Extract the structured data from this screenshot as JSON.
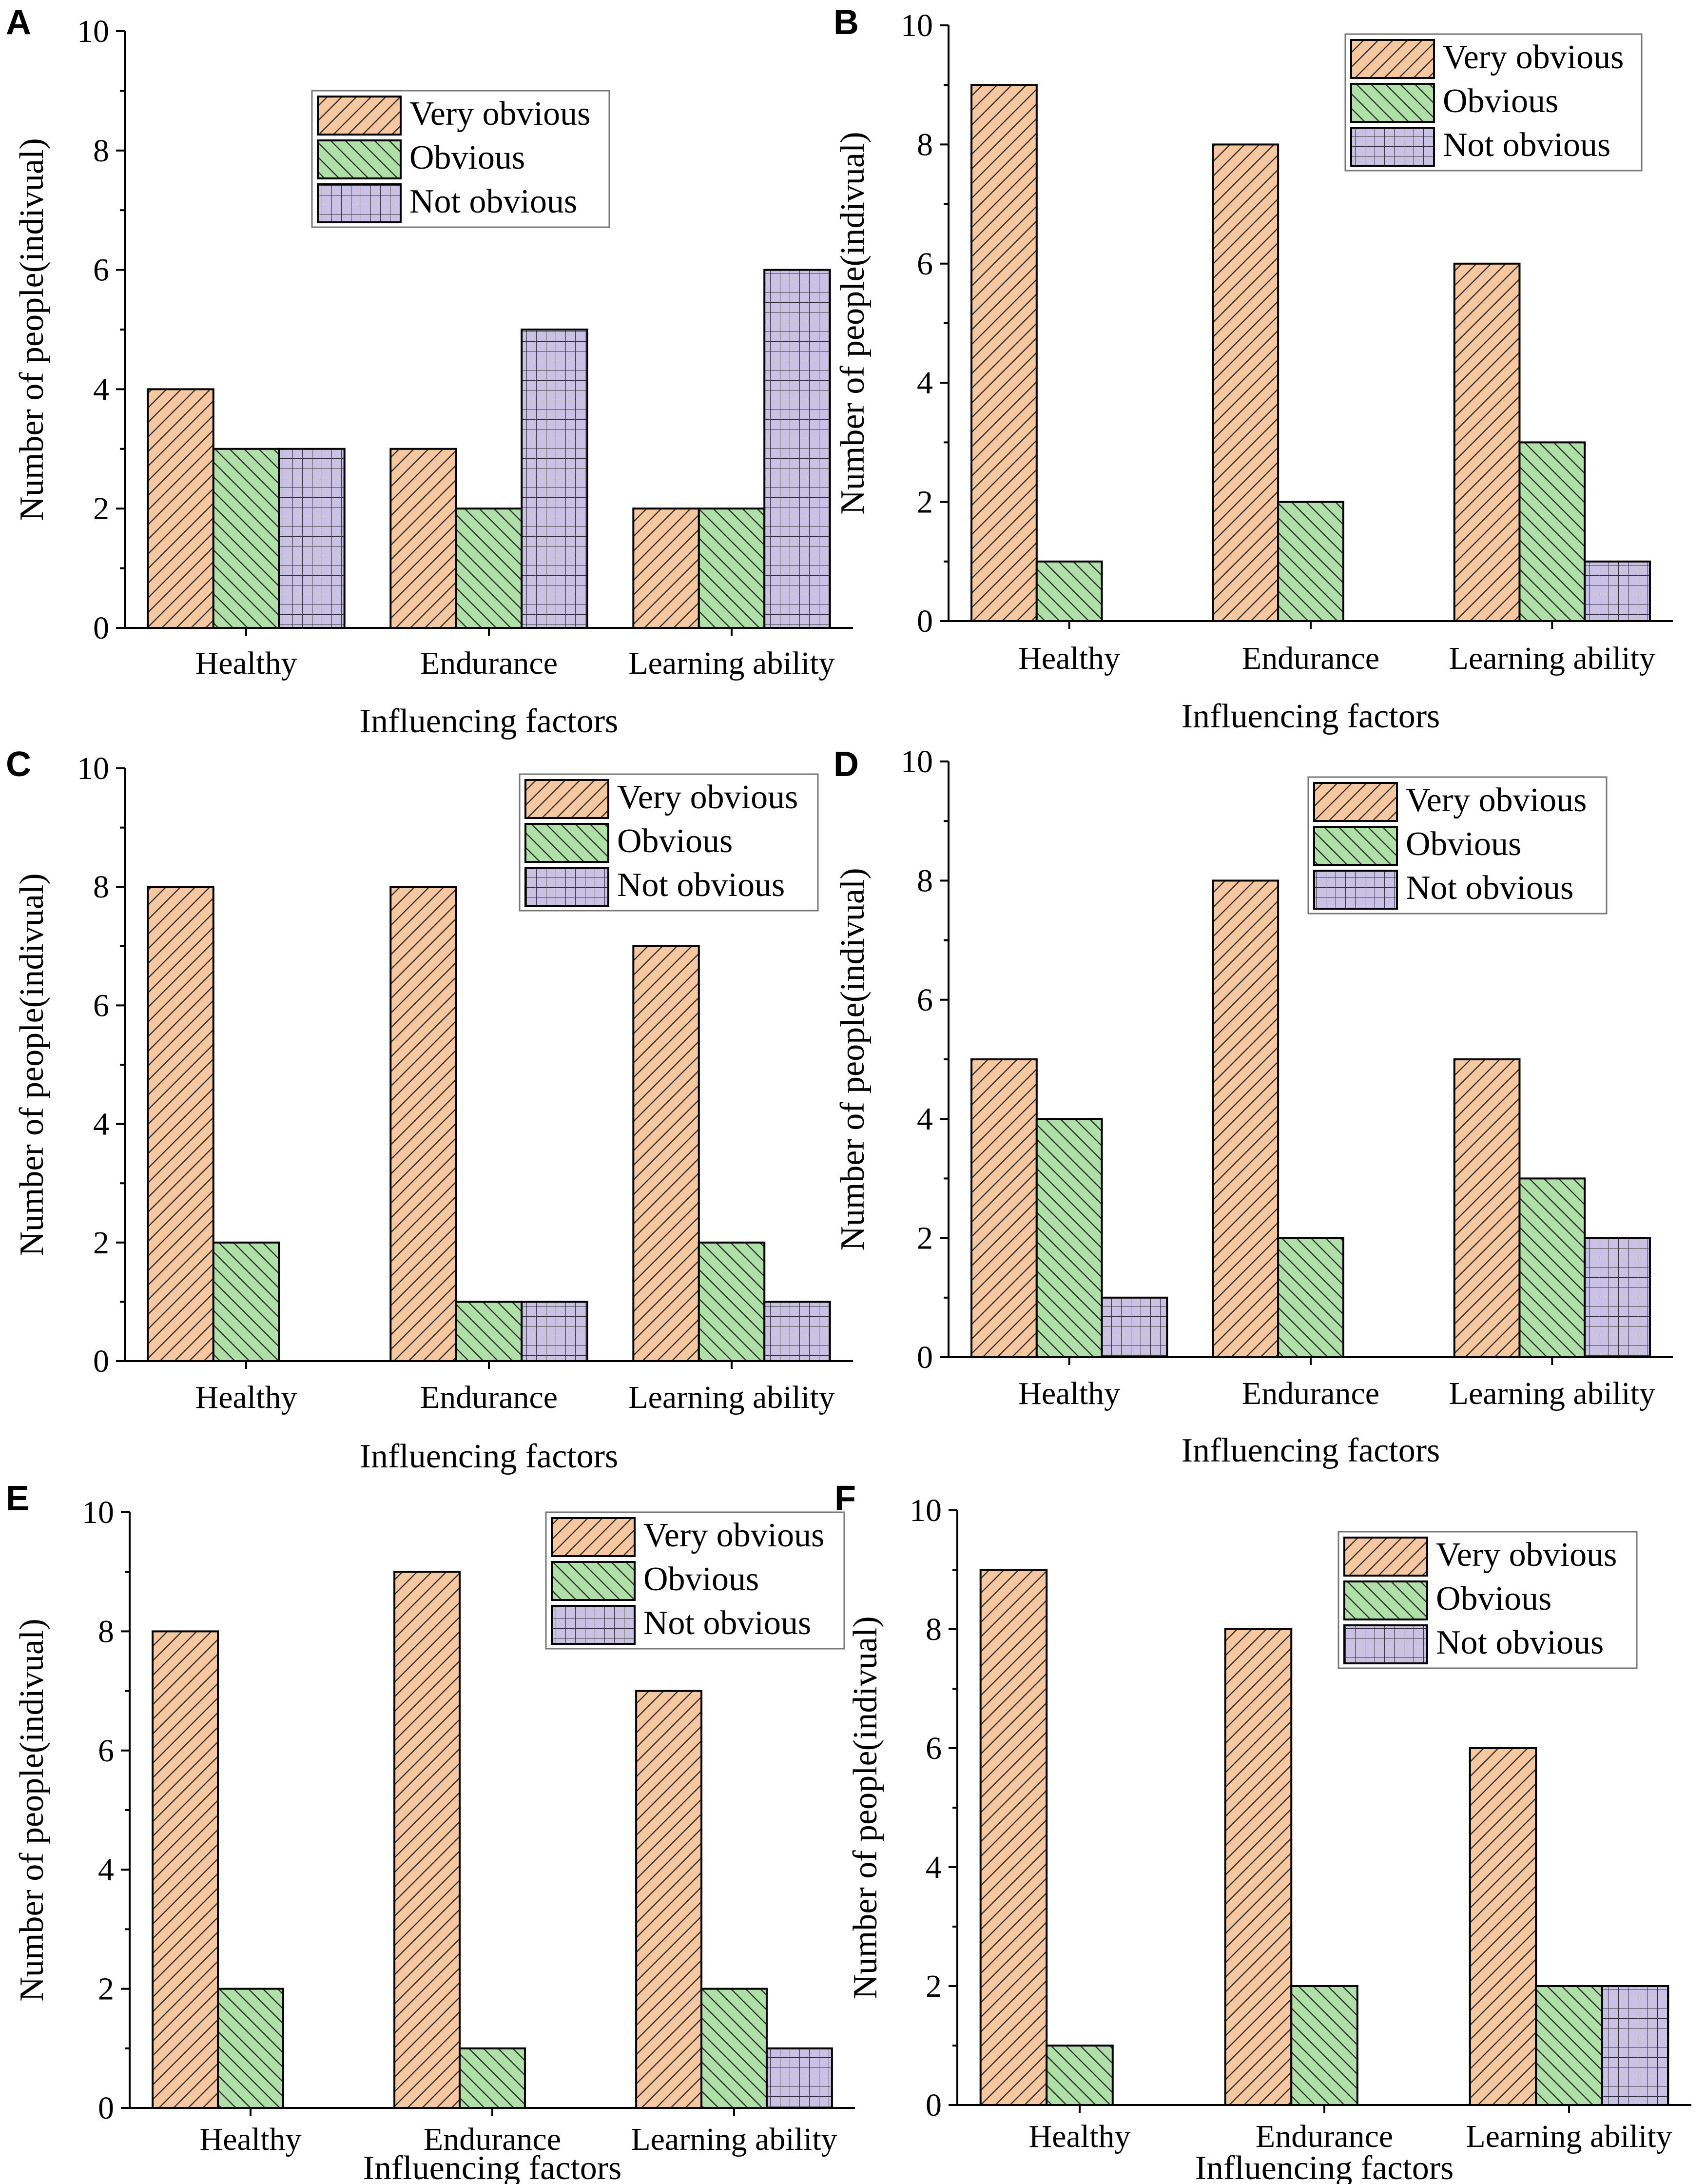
{
  "figure": {
    "colors": {
      "very_obvious": "#F7C7A0",
      "obvious": "#AEE0A8",
      "not_obvious": "#C9C2E4",
      "hatch": "#333333"
    }
  },
  "chart_data": [
    {
      "panel": "A",
      "type": "bar",
      "categories": [
        "Healthy",
        "Endurance",
        "Learning ability"
      ],
      "series": [
        {
          "name": "Very obvious",
          "values": [
            4,
            3,
            2
          ]
        },
        {
          "name": "Obvious",
          "values": [
            3,
            2,
            2
          ]
        },
        {
          "name": "Not obvious",
          "values": [
            3,
            5,
            6
          ]
        }
      ],
      "xlabel": "Influencing factors",
      "ylabel": "Number of people(indivual)",
      "ylim": [
        0,
        10
      ],
      "yticks": [
        "0",
        "2",
        "4",
        "6",
        "8",
        "10"
      ],
      "legend": "top-center"
    },
    {
      "panel": "B",
      "type": "bar",
      "categories": [
        "Healthy",
        "Endurance",
        "Learning ability"
      ],
      "series": [
        {
          "name": "Very obvious",
          "values": [
            9,
            8,
            6
          ]
        },
        {
          "name": "Obvious",
          "values": [
            1,
            2,
            3
          ]
        },
        {
          "name": "Not obvious",
          "values": [
            0,
            0,
            1
          ]
        }
      ],
      "xlabel": "Influencing factors",
      "ylabel": "Number of people(indivual)",
      "ylim": [
        0,
        10
      ],
      "yticks": [
        "0",
        "2",
        "4",
        "6",
        "8",
        "10"
      ],
      "legend": "top-right"
    },
    {
      "panel": "C",
      "type": "bar",
      "categories": [
        "Healthy",
        "Endurance",
        "Learning ability"
      ],
      "series": [
        {
          "name": "Very obvious",
          "values": [
            8,
            8,
            7
          ]
        },
        {
          "name": "Obvious",
          "values": [
            2,
            1,
            2
          ]
        },
        {
          "name": "Not obvious",
          "values": [
            0,
            1,
            1
          ]
        }
      ],
      "xlabel": "Influencing factors",
      "ylabel": "Number of people(indivual)",
      "ylim": [
        0,
        10
      ],
      "yticks": [
        "0",
        "2",
        "4",
        "6",
        "8",
        "10"
      ],
      "legend": "top-right"
    },
    {
      "panel": "D",
      "type": "bar",
      "categories": [
        "Healthy",
        "Endurance",
        "Learning ability"
      ],
      "series": [
        {
          "name": "Very obvious",
          "values": [
            5,
            8,
            5
          ]
        },
        {
          "name": "Obvious",
          "values": [
            4,
            2,
            3
          ]
        },
        {
          "name": "Not obvious",
          "values": [
            1,
            0,
            2
          ]
        }
      ],
      "xlabel": "Influencing factors",
      "ylabel": "Number of people(indivual)",
      "ylim": [
        0,
        10
      ],
      "yticks": [
        "0",
        "2",
        "4",
        "6",
        "8",
        "10"
      ],
      "legend": "top-right"
    },
    {
      "panel": "E",
      "type": "bar",
      "categories": [
        "Healthy",
        "Endurance",
        "Learning ability"
      ],
      "series": [
        {
          "name": "Very obvious",
          "values": [
            8,
            9,
            7
          ]
        },
        {
          "name": "Obvious",
          "values": [
            2,
            1,
            2
          ]
        },
        {
          "name": "Not obvious",
          "values": [
            0,
            0,
            1
          ]
        }
      ],
      "xlabel": "Influencing factors",
      "ylabel": "Number of people(indivual)",
      "ylim": [
        0,
        10
      ],
      "yticks": [
        "0",
        "2",
        "4",
        "6",
        "8",
        "10"
      ],
      "legend": "top-right"
    },
    {
      "panel": "F",
      "type": "bar",
      "categories": [
        "Healthy",
        "Endurance",
        "Learning ability"
      ],
      "series": [
        {
          "name": "Very obvious",
          "values": [
            9,
            8,
            6
          ]
        },
        {
          "name": "Obvious",
          "values": [
            1,
            2,
            2
          ]
        },
        {
          "name": "Not obvious",
          "values": [
            0,
            0,
            2
          ]
        }
      ],
      "xlabel": "Influencing factors",
      "ylabel": "Number of people(indivual)",
      "ylim": [
        0,
        10
      ],
      "yticks": [
        "0",
        "2",
        "4",
        "6",
        "8",
        "10"
      ],
      "legend": "top-right"
    }
  ]
}
